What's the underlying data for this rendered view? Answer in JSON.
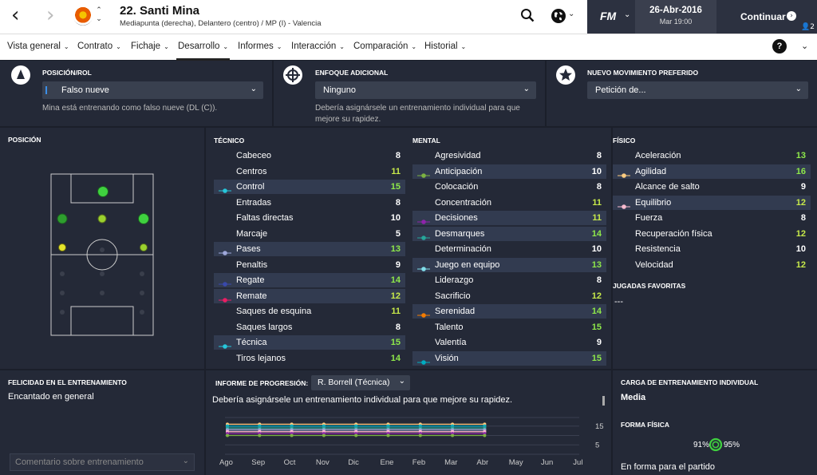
{
  "header": {
    "back_icon": "chevron-left-icon",
    "forward_icon": "chevron-right-icon",
    "player_title": "22. Santi Mina",
    "player_subtitle": "Mediapunta (derecha), Delantero (centro) / MP (I) - Valencia",
    "fm_label": "FM",
    "date": "26-Abr-2016",
    "time": "Mar 19:00",
    "continue_label": "Continuar",
    "notification_count": "2"
  },
  "tabs": [
    {
      "label": "Vista general"
    },
    {
      "label": "Contrato"
    },
    {
      "label": "Fichaje"
    },
    {
      "label": "Desarrollo"
    },
    {
      "label": "Informes"
    },
    {
      "label": "Interacción"
    },
    {
      "label": "Comparación"
    },
    {
      "label": "Historial"
    }
  ],
  "active_tab": "Desarrollo",
  "help_label": "?",
  "position_role": {
    "title": "POSICIÓN/ROL",
    "value": "Falso nueve",
    "description": "Mina está entrenando como falso nueve (DL (C))."
  },
  "additional_focus": {
    "title": "ENFOQUE ADICIONAL",
    "value": "Ninguno",
    "description_line1": "Debería asignársele un entrenamiento individual para que",
    "description_line2": "mejore su rapidez."
  },
  "new_move": {
    "title": "NUEVO MOVIMIENTO PREFERIDO",
    "value": "Petición de..."
  },
  "position_panel": {
    "title": "POSICIÓN"
  },
  "technical": {
    "title": "TÉCNICO",
    "attributes": [
      {
        "name": "Cabeceo",
        "value": "8",
        "hl": false,
        "dot": ""
      },
      {
        "name": "Centros",
        "value": "11",
        "hl": false,
        "dot": ""
      },
      {
        "name": "Control",
        "value": "15",
        "hl": true,
        "dot": "#26c6da"
      },
      {
        "name": "Entradas",
        "value": "8",
        "hl": false,
        "dot": ""
      },
      {
        "name": "Faltas directas",
        "value": "10",
        "hl": false,
        "dot": ""
      },
      {
        "name": "Marcaje",
        "value": "5",
        "hl": false,
        "dot": ""
      },
      {
        "name": "Pases",
        "value": "13",
        "hl": true,
        "dot": "#9fa8da"
      },
      {
        "name": "Penaltis",
        "value": "9",
        "hl": false,
        "dot": ""
      },
      {
        "name": "Regate",
        "value": "14",
        "hl": true,
        "dot": "#3949ab"
      },
      {
        "name": "Remate",
        "value": "12",
        "hl": true,
        "dot": "#e91e63"
      },
      {
        "name": "Saques de esquina",
        "value": "11",
        "hl": false,
        "dot": ""
      },
      {
        "name": "Saques largos",
        "value": "8",
        "hl": false,
        "dot": ""
      },
      {
        "name": "Técnica",
        "value": "15",
        "hl": true,
        "dot": "#26c6da"
      },
      {
        "name": "Tiros lejanos",
        "value": "14",
        "hl": false,
        "dot": ""
      }
    ]
  },
  "mental": {
    "title": "MENTAL",
    "attributes": [
      {
        "name": "Agresividad",
        "value": "8",
        "hl": false,
        "dot": ""
      },
      {
        "name": "Anticipación",
        "value": "10",
        "hl": true,
        "dot": "#7cb342"
      },
      {
        "name": "Colocación",
        "value": "8",
        "hl": false,
        "dot": ""
      },
      {
        "name": "Concentración",
        "value": "11",
        "hl": false,
        "dot": ""
      },
      {
        "name": "Decisiones",
        "value": "11",
        "hl": true,
        "dot": "#8e24aa"
      },
      {
        "name": "Desmarques",
        "value": "14",
        "hl": true,
        "dot": "#26a69a"
      },
      {
        "name": "Determinación",
        "value": "10",
        "hl": false,
        "dot": ""
      },
      {
        "name": "Juego en equipo",
        "value": "13",
        "hl": true,
        "dot": "#80deea"
      },
      {
        "name": "Liderazgo",
        "value": "8",
        "hl": false,
        "dot": ""
      },
      {
        "name": "Sacrificio",
        "value": "12",
        "hl": false,
        "dot": ""
      },
      {
        "name": "Serenidad",
        "value": "14",
        "hl": true,
        "dot": "#f57c00"
      },
      {
        "name": "Talento",
        "value": "15",
        "hl": false,
        "dot": ""
      },
      {
        "name": "Valentía",
        "value": "9",
        "hl": false,
        "dot": ""
      },
      {
        "name": "Visión",
        "value": "15",
        "hl": true,
        "dot": "#00acc1"
      }
    ]
  },
  "physical": {
    "title": "FÍSICO",
    "attributes": [
      {
        "name": "Aceleración",
        "value": "13",
        "hl": false,
        "dot": ""
      },
      {
        "name": "Agilidad",
        "value": "16",
        "hl": true,
        "dot": "#ffcc80"
      },
      {
        "name": "Alcance de salto",
        "value": "9",
        "hl": false,
        "dot": ""
      },
      {
        "name": "Equilibrio",
        "value": "12",
        "hl": true,
        "dot": "#f8bbd0"
      },
      {
        "name": "Fuerza",
        "value": "8",
        "hl": false,
        "dot": ""
      },
      {
        "name": "Recuperación física",
        "value": "12",
        "hl": false,
        "dot": ""
      },
      {
        "name": "Resistencia",
        "value": "10",
        "hl": false,
        "dot": ""
      },
      {
        "name": "Velocidad",
        "value": "12",
        "hl": false,
        "dot": ""
      }
    ]
  },
  "favorite_moves": {
    "title": "JUGADAS FAVORITAS",
    "value": "---"
  },
  "training_happiness": {
    "title": "FELICIDAD EN EL ENTRENAMIENTO",
    "value": "Encantado en general",
    "comment_placeholder": "Comentario sobre entrenamiento"
  },
  "progress_report": {
    "title": "INFORME DE PROGRESIÓN:",
    "coach": "R. Borrell (Técnica)",
    "message": "Debería asignársele un entrenamiento individual para que mejore su rapidez."
  },
  "workload": {
    "title": "CARGA DE ENTRENAMIENTO INDIVIDUAL",
    "value": "Media"
  },
  "fitness": {
    "title": "FORMA FÍSICA",
    "condition": "91%",
    "sharpness": "95%",
    "status": "En forma para el partido"
  },
  "chart_data": {
    "type": "line",
    "categories": [
      "Ago",
      "Sep",
      "Oct",
      "Nov",
      "Dic",
      "Ene",
      "Feb",
      "Mar",
      "Abr",
      "May",
      "Jun",
      "Jul"
    ],
    "yticks": [
      "15",
      "5"
    ],
    "ylim": [
      0,
      20
    ],
    "series": [
      {
        "color": "#ffcc80",
        "values": [
          16,
          16,
          16,
          16,
          16,
          16,
          16,
          16,
          16,
          null,
          null,
          null
        ]
      },
      {
        "color": "#26c6da",
        "values": [
          15,
          15,
          15,
          15,
          15,
          15,
          15,
          15,
          15,
          null,
          null,
          null
        ]
      },
      {
        "color": "#00acc1",
        "values": [
          15,
          15,
          15,
          15,
          15,
          15,
          15,
          15,
          15,
          null,
          null,
          null
        ]
      },
      {
        "color": "#f57c00",
        "values": [
          14,
          14,
          14,
          14,
          14,
          14,
          14,
          14,
          14,
          null,
          null,
          null
        ]
      },
      {
        "color": "#3949ab",
        "values": [
          14,
          14,
          14,
          14,
          14,
          14,
          14,
          14,
          14,
          null,
          null,
          null
        ]
      },
      {
        "color": "#26a69a",
        "values": [
          14,
          14,
          14,
          14,
          14,
          14,
          14,
          14,
          14,
          null,
          null,
          null
        ]
      },
      {
        "color": "#80deea",
        "values": [
          13,
          13,
          13,
          13,
          13,
          13,
          13,
          13,
          13,
          null,
          null,
          null
        ]
      },
      {
        "color": "#9fa8da",
        "values": [
          13,
          13,
          13,
          13,
          13,
          13,
          13,
          13,
          13,
          null,
          null,
          null
        ]
      },
      {
        "color": "#e91e63",
        "values": [
          12,
          12,
          12,
          12,
          12,
          12,
          12,
          12,
          12,
          null,
          null,
          null
        ]
      },
      {
        "color": "#f8bbd0",
        "values": [
          12,
          12,
          12,
          12,
          12,
          12,
          12,
          12,
          12,
          null,
          null,
          null
        ]
      },
      {
        "color": "#8e24aa",
        "values": [
          11,
          11,
          11,
          11,
          11,
          11,
          11,
          11,
          11,
          null,
          null,
          null
        ]
      },
      {
        "color": "#7cb342",
        "values": [
          10,
          10,
          10,
          10,
          10,
          10,
          10,
          10,
          10,
          null,
          null,
          null
        ]
      }
    ]
  },
  "pitch": {
    "positions": [
      {
        "role": "DL (C)",
        "rating": "natural",
        "color": "#3fd13f"
      },
      {
        "role": "MP (I)",
        "rating": "accomplished",
        "color": "#2e9e2e"
      },
      {
        "role": "MP (C)",
        "rating": "competent",
        "color": "#9bd12e"
      },
      {
        "role": "MP (D)",
        "rating": "natural",
        "color": "#3fd13f"
      },
      {
        "role": "M (I)",
        "rating": "unconvincing",
        "color": "#e5e52b"
      },
      {
        "role": "M (D)",
        "rating": "competent",
        "color": "#9bd12e"
      }
    ]
  }
}
